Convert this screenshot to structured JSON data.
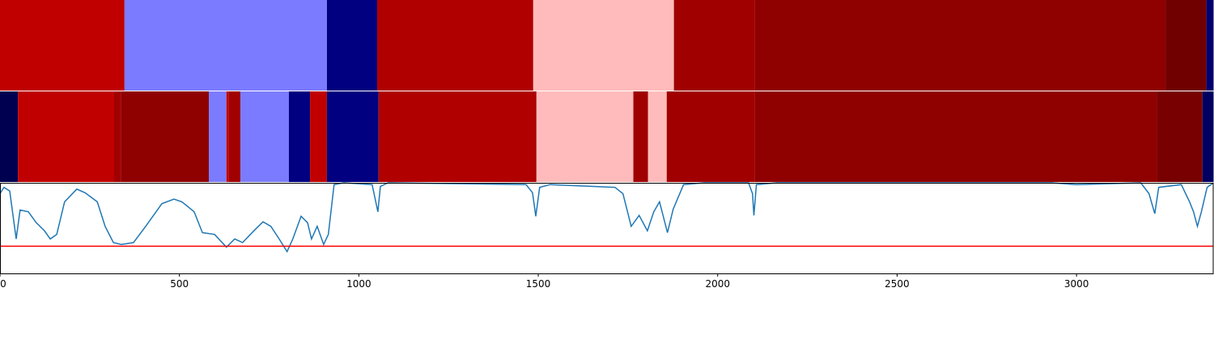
{
  "chart_data": [
    {
      "type": "band",
      "xlim": [
        0,
        3382
      ],
      "segments": [
        {
          "start": 0,
          "end": 347,
          "color": "#c00000"
        },
        {
          "start": 347,
          "end": 911,
          "color": "#7b7bff"
        },
        {
          "start": 911,
          "end": 1051,
          "color": "#000080"
        },
        {
          "start": 1051,
          "end": 1486,
          "color": "#b00000"
        },
        {
          "start": 1486,
          "end": 1878,
          "color": "#ffbbbb"
        },
        {
          "start": 1878,
          "end": 2104,
          "color": "#a00000"
        },
        {
          "start": 2104,
          "end": 3249,
          "color": "#8f0000"
        },
        {
          "start": 3249,
          "end": 3362,
          "color": "#700000"
        },
        {
          "start": 3362,
          "end": 3382,
          "color": "#000070"
        }
      ]
    },
    {
      "type": "band",
      "xlim": [
        0,
        3382
      ],
      "segments": [
        {
          "start": 0,
          "end": 50,
          "color": "#000050"
        },
        {
          "start": 50,
          "end": 318,
          "color": "#c00000"
        },
        {
          "start": 318,
          "end": 338,
          "color": "#a00000"
        },
        {
          "start": 338,
          "end": 582,
          "color": "#8f0000"
        },
        {
          "start": 582,
          "end": 631,
          "color": "#7b7bff"
        },
        {
          "start": 631,
          "end": 638,
          "color": "#c00000"
        },
        {
          "start": 638,
          "end": 670,
          "color": "#a00000"
        },
        {
          "start": 670,
          "end": 805,
          "color": "#7b7bff"
        },
        {
          "start": 805,
          "end": 864,
          "color": "#000080"
        },
        {
          "start": 864,
          "end": 911,
          "color": "#c00000"
        },
        {
          "start": 911,
          "end": 1055,
          "color": "#000080"
        },
        {
          "start": 1055,
          "end": 1495,
          "color": "#b00000"
        },
        {
          "start": 1495,
          "end": 1765,
          "color": "#ffbbbb"
        },
        {
          "start": 1765,
          "end": 1806,
          "color": "#a00000"
        },
        {
          "start": 1806,
          "end": 1858,
          "color": "#ffbbbb"
        },
        {
          "start": 1858,
          "end": 2104,
          "color": "#a00000"
        },
        {
          "start": 2104,
          "end": 3224,
          "color": "#8f0000"
        },
        {
          "start": 3224,
          "end": 3351,
          "color": "#780000"
        },
        {
          "start": 3351,
          "end": 3382,
          "color": "#000060"
        }
      ]
    },
    {
      "type": "line",
      "xlim": [
        0,
        3382
      ],
      "ylim": [
        0,
        1
      ],
      "xticks": [
        0,
        500,
        1000,
        1500,
        2000,
        2500,
        3000
      ],
      "x": [
        0,
        11,
        27,
        45,
        56,
        79,
        101,
        124,
        140,
        158,
        180,
        214,
        237,
        271,
        293,
        316,
        338,
        372,
        406,
        451,
        485,
        507,
        541,
        564,
        598,
        631,
        654,
        676,
        710,
        733,
        755,
        778,
        800,
        816,
        839,
        857,
        868,
        884,
        902,
        915,
        931,
        958,
        1037,
        1053,
        1060,
        1082,
        1466,
        1484,
        1493,
        1504,
        1533,
        1714,
        1736,
        1759,
        1781,
        1804,
        1822,
        1838,
        1860,
        1876,
        1905,
        1962,
        2086,
        2097,
        2101,
        2108,
        2165,
        2931,
        2999,
        3179,
        3202,
        3218,
        3229,
        3292,
        3315,
        3326,
        3337,
        3348,
        3364,
        3382
      ],
      "series": [
        {
          "color": "#1f77b4",
          "values": [
            0.88,
            0.95,
            0.91,
            0.38,
            0.7,
            0.68,
            0.56,
            0.47,
            0.38,
            0.43,
            0.79,
            0.93,
            0.89,
            0.79,
            0.52,
            0.34,
            0.32,
            0.34,
            0.52,
            0.77,
            0.82,
            0.79,
            0.68,
            0.45,
            0.43,
            0.29,
            0.38,
            0.34,
            0.48,
            0.57,
            0.52,
            0.38,
            0.24,
            0.38,
            0.63,
            0.56,
            0.38,
            0.52,
            0.32,
            0.43,
            0.98,
            1.0,
            0.98,
            0.68,
            0.96,
            1.0,
            0.98,
            0.89,
            0.63,
            0.95,
            0.98,
            0.95,
            0.88,
            0.52,
            0.64,
            0.47,
            0.68,
            0.79,
            0.45,
            0.71,
            0.98,
            1.0,
            1.0,
            0.88,
            0.64,
            0.98,
            1.0,
            1.0,
            0.98,
            1.0,
            0.88,
            0.66,
            0.95,
            0.98,
            0.79,
            0.68,
            0.52,
            0.68,
            0.95,
            1.0
          ]
        }
      ],
      "threshold": {
        "value": 0.3,
        "color": "#ff0000"
      }
    }
  ]
}
